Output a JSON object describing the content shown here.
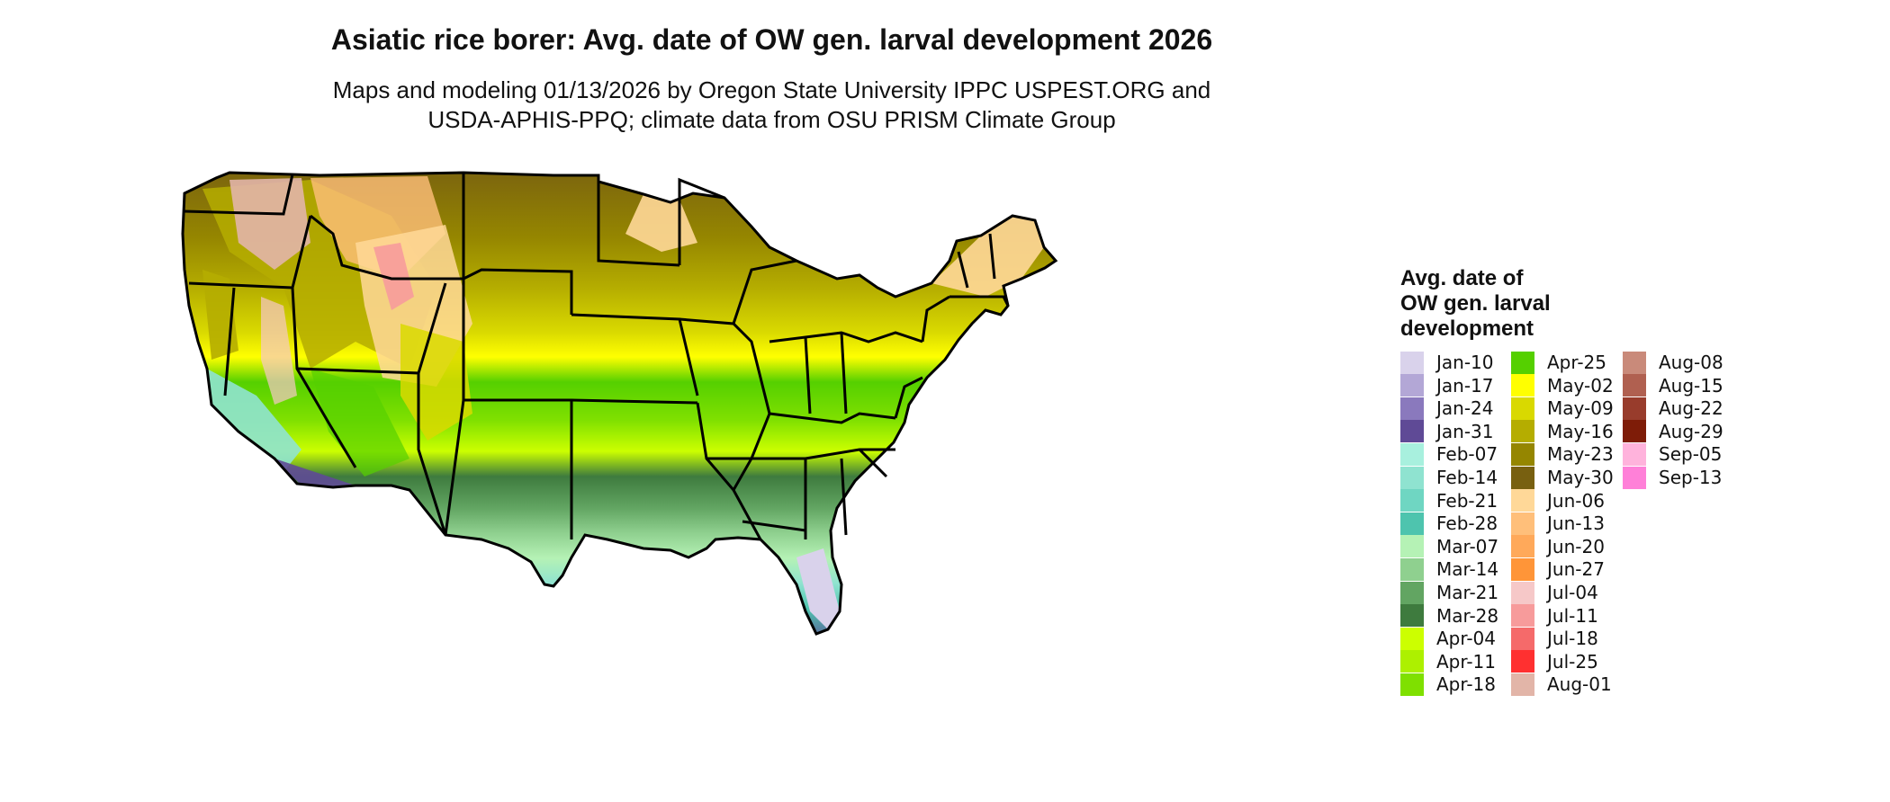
{
  "title": "Asiatic rice borer: Avg. date of OW gen. larval development 2026",
  "subtitle_line1": "Maps and modeling 01/13/2026 by Oregon State University IPPC USPEST.ORG and",
  "subtitle_line2": "USDA-APHIS-PPQ; climate data from OSU PRISM Climate Group",
  "legend": {
    "title_lines": [
      "Avg. date of",
      "OW gen. larval",
      "development"
    ],
    "items": [
      {
        "label": "Jan-10",
        "color": "#d9d2eb"
      },
      {
        "label": "Jan-17",
        "color": "#b3a7d6"
      },
      {
        "label": "Jan-24",
        "color": "#8a79bd"
      },
      {
        "label": "Jan-31",
        "color": "#5f4a96"
      },
      {
        "label": "Feb-07",
        "color": "#a8f0de"
      },
      {
        "label": "Feb-14",
        "color": "#8fe3d0"
      },
      {
        "label": "Feb-21",
        "color": "#6fd6c2"
      },
      {
        "label": "Feb-28",
        "color": "#4ec4ae"
      },
      {
        "label": "Mar-07",
        "color": "#b5f2b5"
      },
      {
        "label": "Mar-14",
        "color": "#8fd08f"
      },
      {
        "label": "Mar-21",
        "color": "#62a562"
      },
      {
        "label": "Mar-28",
        "color": "#3e7b3e"
      },
      {
        "label": "Apr-04",
        "color": "#ccff00"
      },
      {
        "label": "Apr-11",
        "color": "#adf000"
      },
      {
        "label": "Apr-18",
        "color": "#7fe000"
      },
      {
        "label": "Apr-25",
        "color": "#55d000"
      },
      {
        "label": "May-02",
        "color": "#ffff00"
      },
      {
        "label": "May-09",
        "color": "#d9d900"
      },
      {
        "label": "May-16",
        "color": "#b5ad00"
      },
      {
        "label": "May-23",
        "color": "#958600"
      },
      {
        "label": "May-30",
        "color": "#786010"
      },
      {
        "label": "Jun-06",
        "color": "#ffd898"
      },
      {
        "label": "Jun-13",
        "color": "#ffbf7a"
      },
      {
        "label": "Jun-20",
        "color": "#ffa95a"
      },
      {
        "label": "Jun-27",
        "color": "#ff9538"
      },
      {
        "label": "Jul-04",
        "color": "#f6c8c8"
      },
      {
        "label": "Jul-11",
        "color": "#f79b9b"
      },
      {
        "label": "Jul-18",
        "color": "#f56a6a"
      },
      {
        "label": "Jul-25",
        "color": "#ff3030"
      },
      {
        "label": "Aug-01",
        "color": "#e2b5a8"
      },
      {
        "label": "Aug-08",
        "color": "#c98a7a"
      },
      {
        "label": "Aug-15",
        "color": "#b06050"
      },
      {
        "label": "Aug-22",
        "color": "#983c2c"
      },
      {
        "label": "Aug-29",
        "color": "#7e1c08"
      },
      {
        "label": "Sep-05",
        "color": "#ffb3dc"
      },
      {
        "label": "Sep-13",
        "color": "#ff80d8"
      }
    ]
  }
}
